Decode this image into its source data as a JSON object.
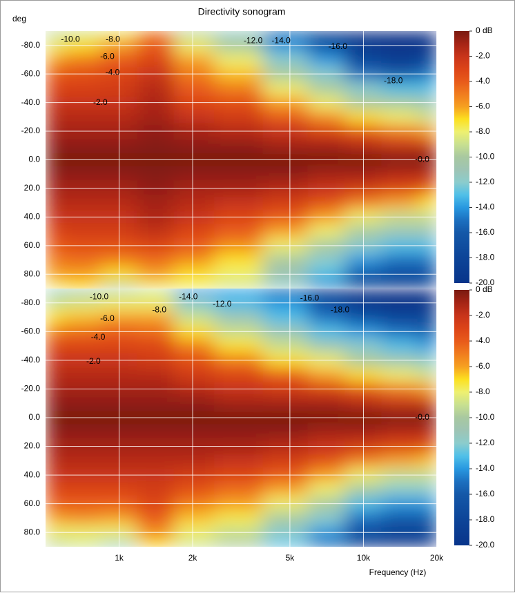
{
  "chart_data": [
    {
      "type": "heatmap",
      "title": "Directivity sonogram",
      "ylabel": "deg",
      "x": [
        500,
        700,
        1000,
        1400,
        2000,
        3000,
        5000,
        7000,
        10000,
        14000,
        20000
      ],
      "y": [
        -90,
        -80,
        -70,
        -60,
        -50,
        -40,
        -30,
        -20,
        -10,
        0,
        10,
        20,
        30,
        40,
        50,
        60,
        70,
        80,
        90
      ],
      "z": [
        [
          -10,
          -8,
          -6,
          -4,
          -3,
          -2,
          -1.5,
          -1,
          -0.5,
          0,
          -0.5,
          -1,
          -1.5,
          -2,
          -3,
          -4,
          -5,
          -6,
          -8
        ],
        [
          -9,
          -7,
          -5,
          -3.5,
          -2.8,
          -2,
          -1.5,
          -1,
          -0.5,
          0,
          -0.5,
          -1,
          -1.5,
          -2,
          -2.5,
          -3.5,
          -4.5,
          -6,
          -7
        ],
        [
          -8,
          -6,
          -4,
          -3,
          -2.5,
          -2,
          -1.5,
          -1,
          -0.5,
          0,
          -0.5,
          -1,
          -1.5,
          -2,
          -2.5,
          -3.5,
          -5,
          -7,
          -10
        ],
        [
          -5,
          -4,
          -3,
          -2,
          -1.5,
          -1.2,
          -1,
          -0.5,
          -0.3,
          0,
          -0.3,
          -0.5,
          -1,
          -1.2,
          -1.8,
          -3,
          -4.5,
          -6,
          -8
        ],
        [
          -10,
          -8,
          -6,
          -5,
          -4,
          -3,
          -2,
          -1,
          -0.5,
          0,
          -0.5,
          -1,
          -1.5,
          -2,
          -3,
          -4,
          -5.5,
          -7,
          -8
        ],
        [
          -12,
          -10,
          -8,
          -6.5,
          -5,
          -3.5,
          -2.5,
          -1.5,
          -0.5,
          0,
          -0.5,
          -1,
          -2,
          -3,
          -4,
          -5.5,
          -7,
          -8,
          -9
        ],
        [
          -16,
          -14,
          -12,
          -10,
          -8,
          -6,
          -4,
          -2,
          -1,
          0,
          -0.5,
          -1.5,
          -2.5,
          -4,
          -6,
          -8,
          -10,
          -11,
          -12
        ],
        [
          -18,
          -17,
          -14,
          -12,
          -10,
          -8,
          -5.5,
          -3,
          -1,
          0,
          -1,
          -2,
          -3.5,
          -6,
          -8,
          -10,
          -12,
          -13,
          -15
        ],
        [
          -20,
          -19,
          -18,
          -15,
          -12,
          -10,
          -7,
          -4,
          -1.5,
          0,
          -1,
          -2.5,
          -5,
          -8,
          -10,
          -12,
          -14,
          -16,
          -18
        ],
        [
          -20,
          -20,
          -19,
          -16,
          -13,
          -10,
          -8,
          -5,
          -2,
          0,
          -1.5,
          -3,
          -6,
          -9,
          -11,
          -13,
          -15,
          -17,
          -19
        ],
        [
          -20,
          -20,
          -18,
          -15,
          -13,
          -11,
          -9,
          -6,
          -2,
          0,
          -1.5,
          -4,
          -7,
          -9,
          -11,
          -13,
          -15,
          -17,
          -18
        ]
      ],
      "xlim": [
        500,
        20000
      ],
      "log_x": true,
      "xticks": [
        1000,
        2000,
        5000,
        10000,
        20000
      ],
      "ylim": [
        -90,
        90
      ],
      "yticks": [
        {
          "value": -80,
          "label": "-80.0"
        },
        {
          "value": -60,
          "label": "-60.0"
        },
        {
          "value": -40,
          "label": "-40.0"
        },
        {
          "value": -20,
          "label": "-20.0"
        },
        {
          "value": 0,
          "label": "0.0"
        },
        {
          "value": 20,
          "label": "20.0"
        },
        {
          "value": 40,
          "label": "40.0"
        },
        {
          "value": 60,
          "label": "60.0"
        },
        {
          "value": 80,
          "label": "80.0"
        }
      ],
      "grid": true,
      "annotations": [
        {
          "text": "-10.0",
          "x": 632,
          "y": -84
        },
        {
          "text": "-8.0",
          "x": 943,
          "y": -84
        },
        {
          "text": "-6.0",
          "x": 895,
          "y": -72
        },
        {
          "text": "-4.0",
          "x": 940,
          "y": -61
        },
        {
          "text": "-2.0",
          "x": 838,
          "y": -40
        },
        {
          "text": "-12.0",
          "x": 3535,
          "y": -83
        },
        {
          "text": "-14.0",
          "x": 4600,
          "y": -83
        },
        {
          "text": "-16.0",
          "x": 7850,
          "y": -79
        },
        {
          "text": "-18.0",
          "x": 13250,
          "y": -55
        },
        {
          "text": "-0.0",
          "x": 17400,
          "y": 0
        }
      ],
      "clim": [
        -20,
        0
      ],
      "colorbar_ticks": [
        {
          "value": 0,
          "label": "0 dB"
        },
        {
          "value": -2,
          "label": "-2.0"
        },
        {
          "value": -4,
          "label": "-4.0"
        },
        {
          "value": -6,
          "label": "-6.0"
        },
        {
          "value": -8,
          "label": "-8.0"
        },
        {
          "value": -10,
          "label": "-10.0"
        },
        {
          "value": -12,
          "label": "-12.0"
        },
        {
          "value": -14,
          "label": "-14.0"
        },
        {
          "value": -16,
          "label": "-16.0"
        },
        {
          "value": -18,
          "label": "-18.0"
        },
        {
          "value": -20,
          "label": "-20.0"
        }
      ],
      "colorscale": [
        {
          "value": 0,
          "color": "#7a1a10"
        },
        {
          "value": -1,
          "color": "#a52415"
        },
        {
          "value": -2,
          "color": "#c8341a"
        },
        {
          "value": -3,
          "color": "#dc4418"
        },
        {
          "value": -4,
          "color": "#e85a1a"
        },
        {
          "value": -5,
          "color": "#f07c1e"
        },
        {
          "value": -6,
          "color": "#f6a020"
        },
        {
          "value": -7,
          "color": "#fce020"
        },
        {
          "value": -8,
          "color": "#eef070"
        },
        {
          "value": -9,
          "color": "#c8e090"
        },
        {
          "value": -10,
          "color": "#a8c8a0"
        },
        {
          "value": -11,
          "color": "#9ec4b4"
        },
        {
          "value": -12,
          "color": "#8ccccc"
        },
        {
          "value": -13,
          "color": "#50c0e8"
        },
        {
          "value": -14,
          "color": "#2898e0"
        },
        {
          "value": -15,
          "color": "#1c70c0"
        },
        {
          "value": -16,
          "color": "#1458a8"
        },
        {
          "value": -18,
          "color": "#0c4498"
        },
        {
          "value": -20,
          "color": "#08348a"
        }
      ]
    },
    {
      "type": "heatmap",
      "xlabel": "Frequency (Hz)",
      "x": [
        500,
        700,
        1000,
        1400,
        2000,
        3000,
        5000,
        7000,
        10000,
        14000,
        20000
      ],
      "y": [
        -90,
        -80,
        -70,
        -60,
        -50,
        -40,
        -30,
        -20,
        -10,
        0,
        10,
        20,
        30,
        40,
        50,
        60,
        70,
        80,
        90
      ],
      "z": [
        [
          -12,
          -9,
          -7,
          -5,
          -3,
          -2,
          -1.5,
          -1,
          -0.5,
          0,
          -0.5,
          -1,
          -1.5,
          -2,
          -3,
          -4,
          -6,
          -8,
          -10
        ],
        [
          -11,
          -8.5,
          -6.5,
          -4.5,
          -3,
          -2,
          -1.5,
          -1,
          -0.5,
          0,
          -0.5,
          -1,
          -1.5,
          -2,
          -3,
          -4,
          -5.5,
          -8,
          -9
        ],
        [
          -10,
          -8,
          -6,
          -4,
          -3,
          -2,
          -1.5,
          -1,
          -0.5,
          0,
          -0.5,
          -1,
          -1.5,
          -2,
          -3,
          -4,
          -6,
          -8,
          -12
        ],
        [
          -9,
          -8,
          -6,
          -4.5,
          -3,
          -2.5,
          -1.5,
          -1,
          -0.5,
          0,
          -0.5,
          -1,
          -1.5,
          -2,
          -2.5,
          -3,
          -4,
          -5.5,
          -7
        ],
        [
          -14,
          -12,
          -9,
          -7,
          -5,
          -3.5,
          -2.5,
          -1.5,
          -0.5,
          0,
          -0.5,
          -1,
          -1.5,
          -2.5,
          -3.5,
          -5,
          -6.5,
          -8,
          -9
        ],
        [
          -14,
          -13,
          -11,
          -9,
          -7,
          -5,
          -3,
          -2,
          -1,
          0,
          -0.5,
          -1,
          -2,
          -3,
          -4.5,
          -6,
          -7.5,
          -9,
          -10
        ],
        [
          -16,
          -14,
          -13,
          -11,
          -9,
          -7,
          -4,
          -2.5,
          -1,
          0,
          -0.5,
          -1.5,
          -2.5,
          -4,
          -6,
          -8,
          -10,
          -12,
          -13
        ],
        [
          -18,
          -17,
          -15,
          -13,
          -11,
          -8,
          -6,
          -3,
          -1,
          0,
          -1,
          -2,
          -3.5,
          -6,
          -8,
          -10,
          -12,
          -14,
          -16
        ],
        [
          -20,
          -19,
          -17,
          -14,
          -12,
          -10,
          -7,
          -4,
          -1.5,
          0,
          -1,
          -2.5,
          -5,
          -8,
          -10,
          -13,
          -15,
          -17,
          -19
        ],
        [
          -20,
          -20,
          -18,
          -15,
          -13,
          -11,
          -8,
          -5,
          -2,
          0,
          -1.5,
          -3,
          -6,
          -9,
          -12,
          -14,
          -16,
          -18,
          -20
        ],
        [
          -20,
          -20,
          -18,
          -16,
          -14,
          -12,
          -9,
          -6,
          -2,
          0,
          -1.5,
          -3.5,
          -6.5,
          -9,
          -12,
          -14,
          -16,
          -18,
          -20
        ]
      ],
      "xlim": [
        500,
        20000
      ],
      "log_x": true,
      "xticks": [
        {
          "value": 1000,
          "label": "1k"
        },
        {
          "value": 2000,
          "label": "2k"
        },
        {
          "value": 5000,
          "label": "5k"
        },
        {
          "value": 10000,
          "label": "10k"
        },
        {
          "value": 20000,
          "label": "20k"
        }
      ],
      "ylim": [
        -90,
        90
      ],
      "yticks": [
        {
          "value": -80,
          "label": "-80.0"
        },
        {
          "value": -60,
          "label": "-60.0"
        },
        {
          "value": -40,
          "label": "-40.0"
        },
        {
          "value": -20,
          "label": "-20.0"
        },
        {
          "value": 0,
          "label": "0.0"
        },
        {
          "value": 20,
          "label": "20.0"
        },
        {
          "value": 40,
          "label": "40.0"
        },
        {
          "value": 60,
          "label": "60.0"
        },
        {
          "value": 80,
          "label": "80.0"
        }
      ],
      "grid": true,
      "annotations": [
        {
          "text": "-10.0",
          "x": 828,
          "y": -84
        },
        {
          "text": "-14.0",
          "x": 1920,
          "y": -84
        },
        {
          "text": "-12.0",
          "x": 2640,
          "y": -79
        },
        {
          "text": "-8.0",
          "x": 1460,
          "y": -75
        },
        {
          "text": "-6.0",
          "x": 895,
          "y": -69
        },
        {
          "text": "-4.0",
          "x": 820,
          "y": -56
        },
        {
          "text": "-2.0",
          "x": 785,
          "y": -39
        },
        {
          "text": "-16.0",
          "x": 6020,
          "y": -83
        },
        {
          "text": "-18.0",
          "x": 8020,
          "y": -75
        },
        {
          "text": "-0.0",
          "x": 17400,
          "y": 0
        }
      ],
      "clim": [
        -20,
        0
      ],
      "colorbar_ticks": [
        {
          "value": 0,
          "label": "0 dB"
        },
        {
          "value": -2,
          "label": "-2.0"
        },
        {
          "value": -4,
          "label": "-4.0"
        },
        {
          "value": -6,
          "label": "-6.0"
        },
        {
          "value": -8,
          "label": "-8.0"
        },
        {
          "value": -10,
          "label": "-10.0"
        },
        {
          "value": -12,
          "label": "-12.0"
        },
        {
          "value": -14,
          "label": "-14.0"
        },
        {
          "value": -16,
          "label": "-16.0"
        },
        {
          "value": -18,
          "label": "-18.0"
        },
        {
          "value": -20,
          "label": "-20.0"
        }
      ],
      "colorscale": [
        {
          "value": 0,
          "color": "#7a1a10"
        },
        {
          "value": -1,
          "color": "#a52415"
        },
        {
          "value": -2,
          "color": "#c8341a"
        },
        {
          "value": -3,
          "color": "#dc4418"
        },
        {
          "value": -4,
          "color": "#e85a1a"
        },
        {
          "value": -5,
          "color": "#f07c1e"
        },
        {
          "value": -6,
          "color": "#f6a020"
        },
        {
          "value": -7,
          "color": "#fce020"
        },
        {
          "value": -8,
          "color": "#eef070"
        },
        {
          "value": -9,
          "color": "#c8e090"
        },
        {
          "value": -10,
          "color": "#a8c8a0"
        },
        {
          "value": -11,
          "color": "#9ec4b4"
        },
        {
          "value": -12,
          "color": "#8ccccc"
        },
        {
          "value": -13,
          "color": "#50c0e8"
        },
        {
          "value": -14,
          "color": "#2898e0"
        },
        {
          "value": -15,
          "color": "#1c70c0"
        },
        {
          "value": -16,
          "color": "#1458a8"
        },
        {
          "value": -18,
          "color": "#0c4498"
        },
        {
          "value": -20,
          "color": "#08348a"
        }
      ]
    }
  ]
}
